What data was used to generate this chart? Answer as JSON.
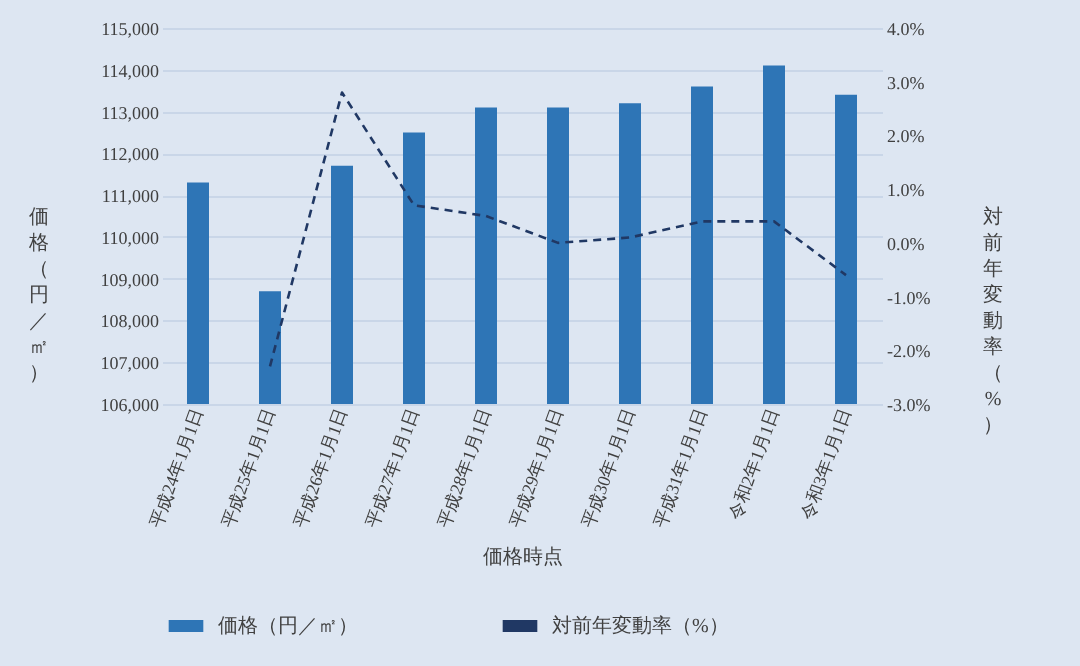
{
  "chart_data": {
    "type": "bar",
    "categories": [
      "平成24年1月1日",
      "平成25年1月1日",
      "平成26年1月1日",
      "平成27年1月1日",
      "平成28年1月1日",
      "平成29年1月1日",
      "平成30年1月1日",
      "平成31年1月1日",
      "令和2年1月1日",
      "令和3年1月1日"
    ],
    "series": [
      {
        "name": "価格（円／㎡）",
        "color": "#2e75b6",
        "values": [
          111300,
          108700,
          111700,
          112500,
          113100,
          113100,
          113200,
          113600,
          114100,
          113400
        ]
      },
      {
        "name": "対前年変動率（%）",
        "type": "line",
        "axis": "y2",
        "line_style": "dashed",
        "color": "#203864",
        "values": [
          null,
          -2.3,
          2.8,
          0.7,
          0.5,
          0.0,
          0.1,
          0.4,
          0.4,
          -0.6
        ]
      }
    ],
    "xlabel": "価格時点",
    "ylabel": "価格（円／㎡）",
    "y2label": "対前年変動率（%）",
    "ylim": [
      106000,
      115000
    ],
    "yticks": [
      {
        "value": 106000,
        "label": "106,000"
      },
      {
        "value": 107000,
        "label": "107,000"
      },
      {
        "value": 108000,
        "label": "108,000"
      },
      {
        "value": 109000,
        "label": "109,000"
      },
      {
        "value": 110000,
        "label": "110,000"
      },
      {
        "value": 111000,
        "label": "111,000"
      },
      {
        "value": 112000,
        "label": "112,000"
      },
      {
        "value": 113000,
        "label": "113,000"
      },
      {
        "value": 114000,
        "label": "114,000"
      },
      {
        "value": 115000,
        "label": "115,000"
      }
    ],
    "y2lim": [
      -3,
      4
    ],
    "y2ticks": [
      {
        "value": -3,
        "label": "-3.0%"
      },
      {
        "value": -2,
        "label": "-2.0%"
      },
      {
        "value": -1,
        "label": "-1.0%"
      },
      {
        "value": 0,
        "label": "0.0%"
      },
      {
        "value": 1,
        "label": "1.0%"
      },
      {
        "value": 2,
        "label": "2.0%"
      },
      {
        "value": 3,
        "label": "3.0%"
      },
      {
        "value": 4,
        "label": "4.0%"
      }
    ],
    "grid": "y",
    "legend": "bottom"
  }
}
